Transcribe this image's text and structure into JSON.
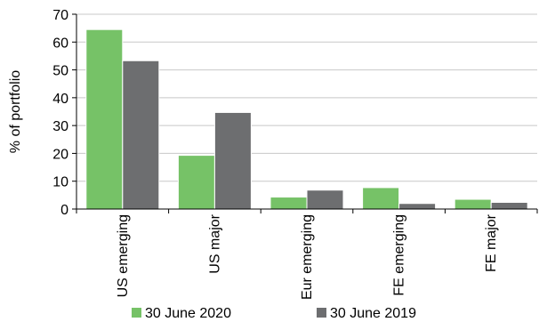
{
  "chart_data": {
    "type": "bar",
    "categories": [
      "US emerging",
      "US major",
      "Eur emerging",
      "FE emerging",
      "FE major"
    ],
    "series": [
      {
        "name": "30 June 2020",
        "color": "#76c267",
        "values": [
          64.5,
          19.3,
          4.3,
          7.7,
          3.5
        ]
      },
      {
        "name": "30 June 2019",
        "color": "#6d6e70",
        "values": [
          53.3,
          34.7,
          6.8,
          2.0,
          2.4
        ]
      }
    ],
    "ylabel": "% of portfolio",
    "xlabel": "",
    "ylim": [
      0,
      70
    ],
    "yticks": [
      0,
      10,
      20,
      30,
      40,
      50,
      60,
      70
    ],
    "grid": true,
    "legend_position": "bottom"
  }
}
